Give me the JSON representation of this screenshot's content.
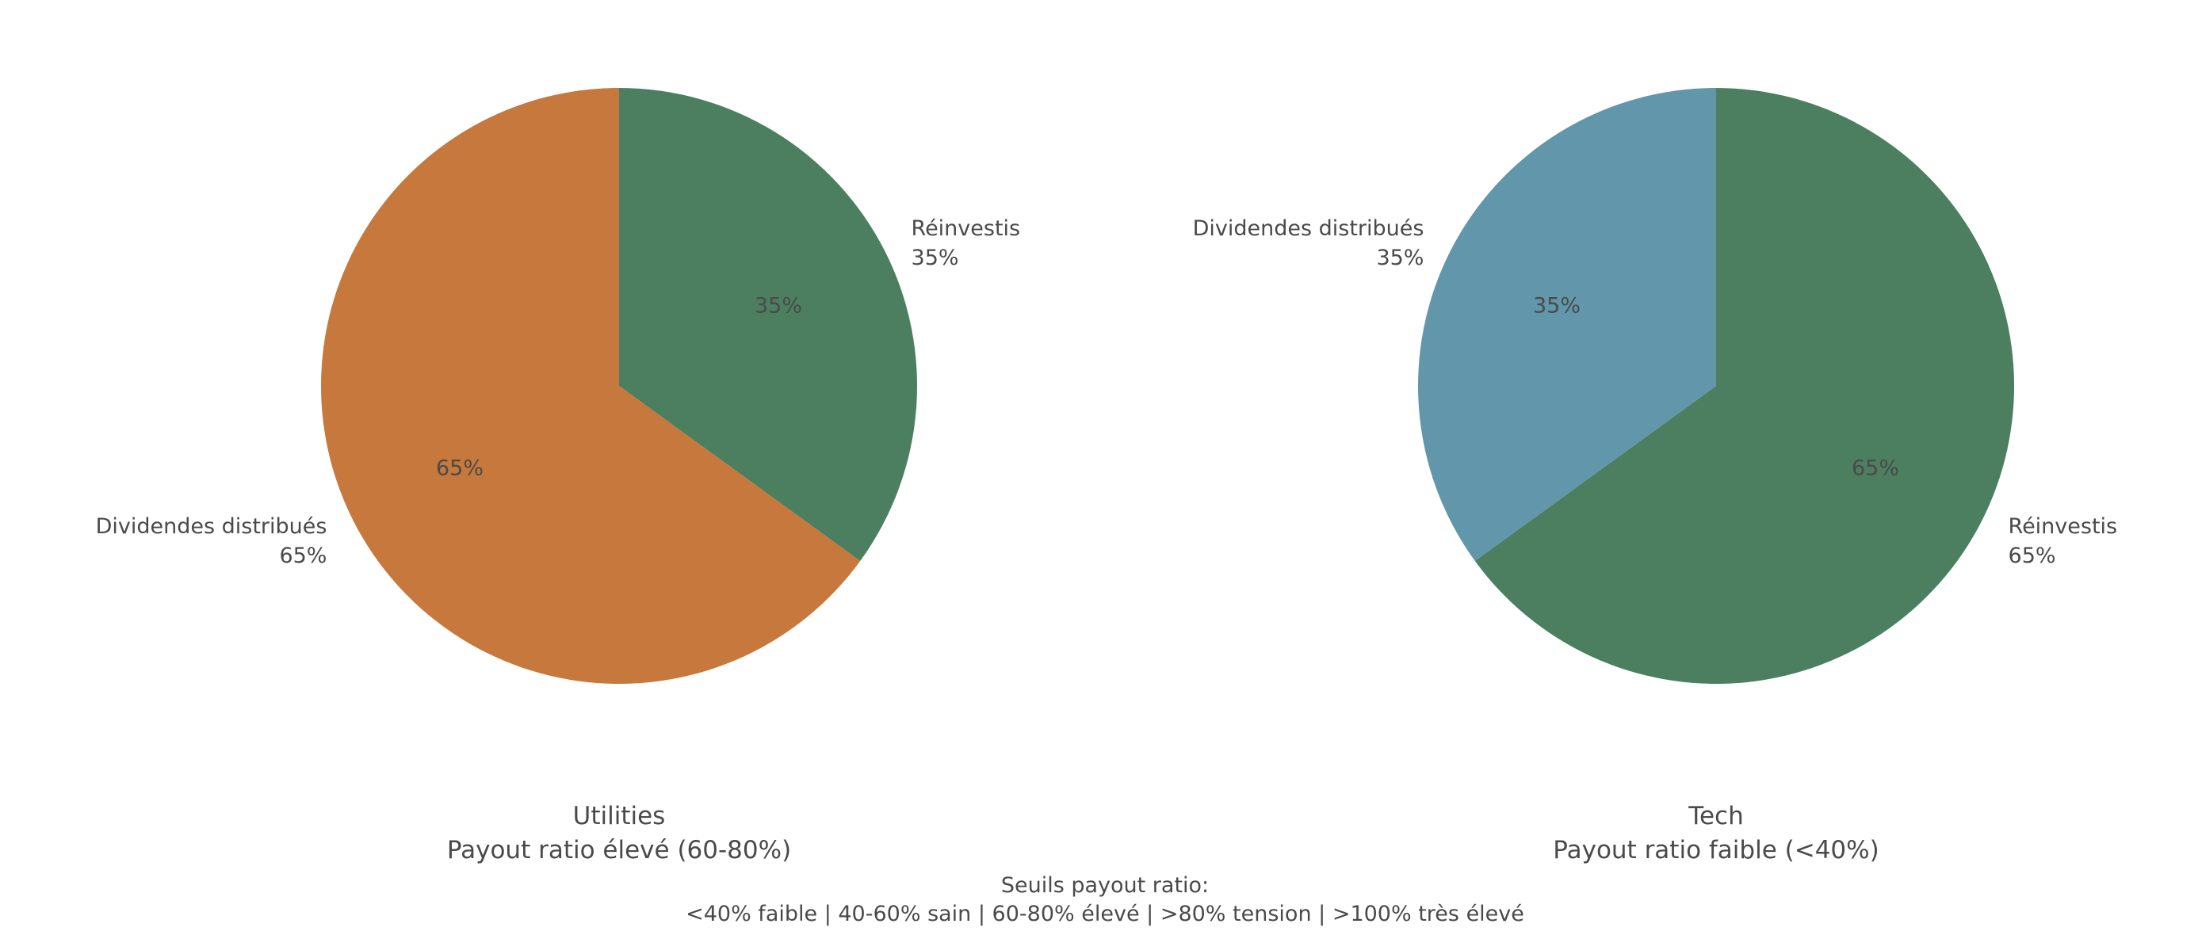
{
  "chart_data": [
    {
      "type": "pie",
      "title": "Utilities",
      "subtitle": "Payout ratio élevé (60-80%)",
      "start_angle_deg": 90,
      "direction": "counterclockwise",
      "slices": [
        {
          "label": "Dividendes distribués",
          "value": 65,
          "pct_label": "65%",
          "color": "#C6783D"
        },
        {
          "label": "Réinvestis",
          "value": 35,
          "pct_label": "35%",
          "color": "#4C7F5F"
        }
      ]
    },
    {
      "type": "pie",
      "title": "Tech",
      "subtitle": "Payout ratio faible (<40%)",
      "start_angle_deg": 90,
      "direction": "counterclockwise",
      "slices": [
        {
          "label": "Dividendes distribués",
          "value": 35,
          "pct_label": "35%",
          "color": "#6196AB"
        },
        {
          "label": "Réinvestis",
          "value": 65,
          "pct_label": "65%",
          "color": "#4C7F5F"
        }
      ]
    }
  ],
  "footer": {
    "line1": "Seuils payout ratio:",
    "line2": "<40% faible | 40-60% sain | 60-80% élevé | >80% tension | >100% très élevé"
  }
}
